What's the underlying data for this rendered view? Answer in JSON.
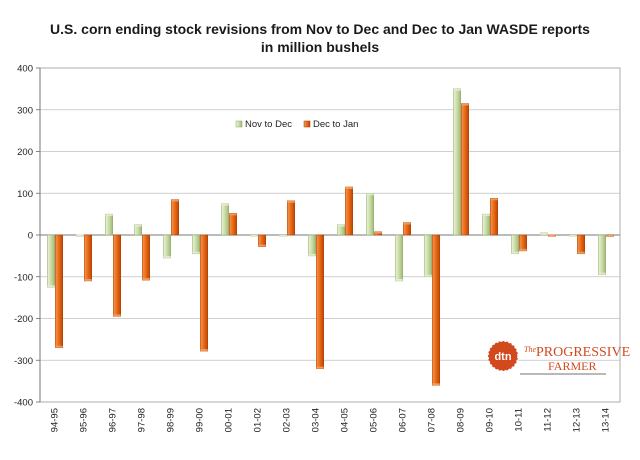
{
  "chart_data": {
    "type": "bar",
    "title": "U.S. corn ending stock revisions from Nov to Dec and Dec to Jan WASDE reports",
    "subtitle": "in million bushels",
    "xlabel": "",
    "ylabel": "",
    "categories": [
      "94-95",
      "95-96",
      "96-97",
      "97-98",
      "98-99",
      "99-00",
      "00-01",
      "01-02",
      "02-03",
      "03-04",
      "04-05",
      "05-06",
      "06-07",
      "07-08",
      "08-09",
      "09-10",
      "10-11",
      "11-12",
      "12-13",
      "13-14"
    ],
    "series": [
      {
        "name": "Nov to Dec",
        "color": "#c5d9a0",
        "values": [
          -125,
          -3,
          50,
          25,
          -55,
          -45,
          75,
          0,
          0,
          -50,
          25,
          100,
          -110,
          -100,
          350,
          50,
          -45,
          5,
          0,
          -95
        ]
      },
      {
        "name": "Dec to Jan",
        "color": "#e8640f",
        "values": [
          -270,
          -110,
          -195,
          -108,
          85,
          -278,
          52,
          -28,
          82,
          -320,
          115,
          8,
          30,
          -360,
          315,
          88,
          -38,
          -3,
          -45,
          0
        ]
      }
    ],
    "ylim": [
      -400,
      400
    ],
    "yticks": [
      -400,
      -300,
      -200,
      -100,
      0,
      100,
      200,
      300,
      400
    ],
    "grid": true,
    "legend_position": "top-left-inside",
    "plot_background": "#ffffff",
    "gridline_color": "#c0c0c0"
  },
  "logo": {
    "mark": "dtn",
    "line1": "The",
    "line2": "PROGRESSIVE",
    "line3": "FARMER"
  }
}
